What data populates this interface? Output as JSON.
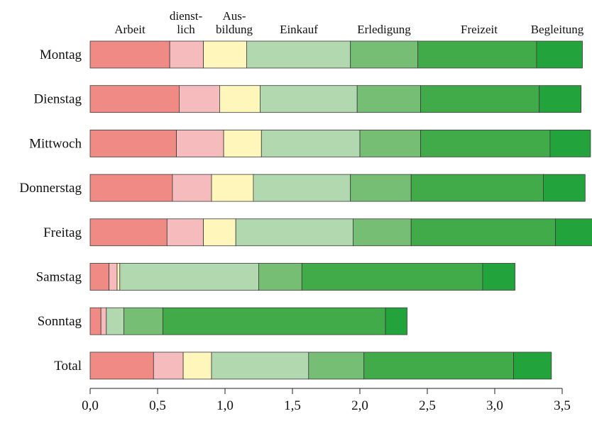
{
  "chart_data": {
    "type": "bar",
    "orientation": "horizontal",
    "stacked": true,
    "categories": [
      "Montag",
      "Dienstag",
      "Mittwoch",
      "Donnerstag",
      "Freitag",
      "Samstag",
      "Sonntag",
      "Total"
    ],
    "series": [
      {
        "name": "Arbeit",
        "label_lines": [
          "Arbeit"
        ],
        "color": "#f08a85",
        "values": [
          0.59,
          0.66,
          0.64,
          0.61,
          0.57,
          0.14,
          0.08,
          0.47
        ]
      },
      {
        "name": "dienstlich",
        "label_lines": [
          "dienst-",
          "lich"
        ],
        "color": "#f6bcbd",
        "values": [
          0.25,
          0.3,
          0.35,
          0.29,
          0.27,
          0.06,
          0.04,
          0.22
        ]
      },
      {
        "name": "Ausbildung",
        "label_lines": [
          "Aus-",
          "bildung"
        ],
        "color": "#fff6bc",
        "values": [
          0.32,
          0.3,
          0.28,
          0.31,
          0.24,
          0.02,
          0.0,
          0.21
        ]
      },
      {
        "name": "Einkauf",
        "label_lines": [
          "Einkauf"
        ],
        "color": "#b1d8af",
        "values": [
          0.77,
          0.72,
          0.73,
          0.72,
          0.87,
          1.03,
          0.13,
          0.72
        ]
      },
      {
        "name": "Erledigung",
        "label_lines": [
          "Erledigung"
        ],
        "color": "#75be74",
        "values": [
          0.5,
          0.47,
          0.45,
          0.45,
          0.43,
          0.32,
          0.29,
          0.41
        ]
      },
      {
        "name": "Freizeit",
        "label_lines": [
          "Freizeit"
        ],
        "color": "#41ab4a",
        "values": [
          0.88,
          0.88,
          0.96,
          0.98,
          1.07,
          1.34,
          1.65,
          1.11
        ]
      },
      {
        "name": "Begleitung",
        "label_lines": [
          "Begleitung"
        ],
        "color": "#23a33b",
        "values": [
          0.34,
          0.31,
          0.3,
          0.31,
          0.31,
          0.24,
          0.16,
          0.28
        ]
      }
    ],
    "xlim": [
      0,
      3.7
    ],
    "xticks": [
      0,
      0.5,
      1,
      1.5,
      2,
      2.5,
      3,
      3.5
    ],
    "xtick_labels": [
      "0,0",
      "0,5",
      "1,0",
      "1,5",
      "2,0",
      "2,5",
      "3,0",
      "3,5"
    ],
    "xlabel": "",
    "ylabel": "",
    "title": "",
    "grid": false,
    "legend": "top"
  }
}
